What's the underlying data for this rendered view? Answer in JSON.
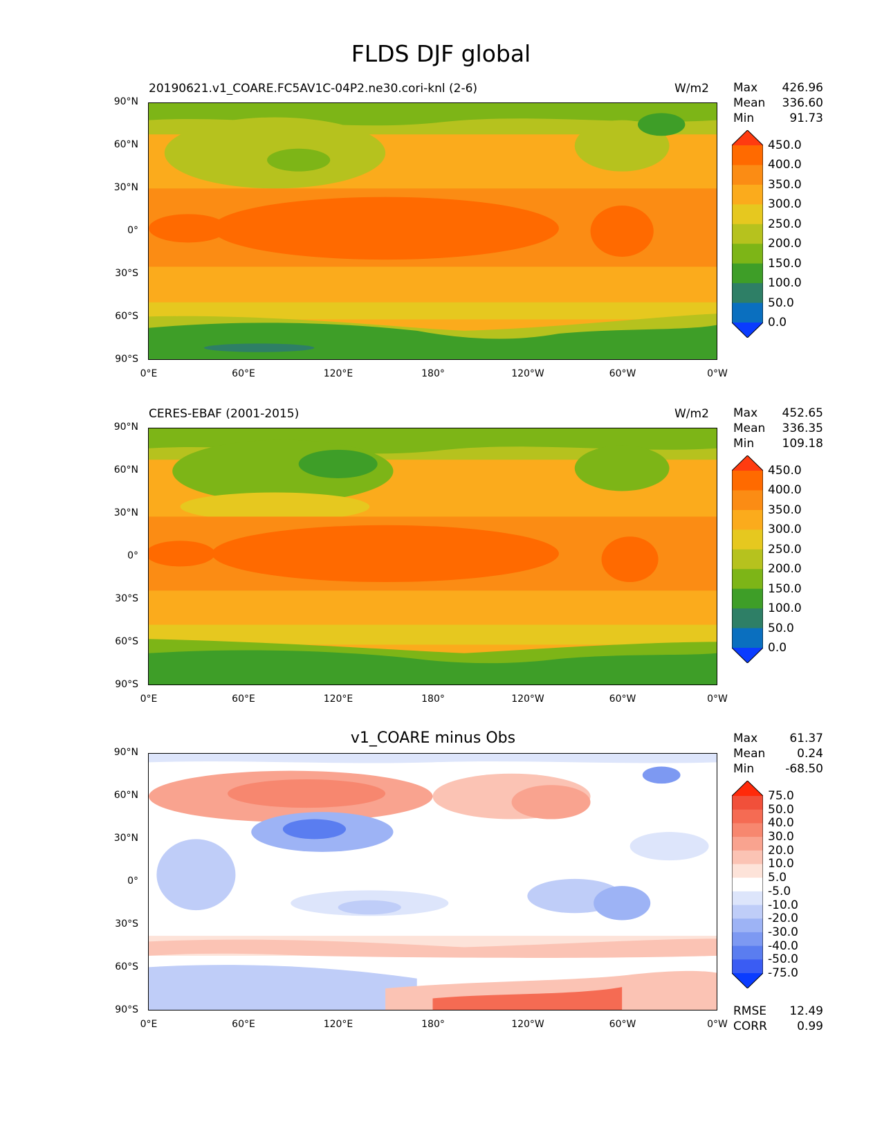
{
  "title": "FLDS DJF global",
  "y_ticks": [
    "90°N",
    "60°N",
    "30°N",
    "0°",
    "30°S",
    "60°S",
    "90°S"
  ],
  "x_ticks": [
    "0°E",
    "60°E",
    "120°E",
    "180°",
    "120°W",
    "60°W",
    "0°W"
  ],
  "panels": [
    {
      "subtitle": "20190621.v1_COARE.FC5AV1C-04P2.ne30.cori-knl (2-6)",
      "units": "W/m2",
      "stats": {
        "max_label": "Max",
        "max": "426.96",
        "mean_label": "Mean",
        "mean": "336.60",
        "min_label": "Min",
        "min": "91.73"
      },
      "colorbar": {
        "levels": [
          "450.0",
          "400.0",
          "350.0",
          "300.0",
          "250.0",
          "200.0",
          "150.0",
          "100.0",
          "50.0",
          "0.0"
        ],
        "colors": [
          "#ff3b10",
          "#ff6a00",
          "#fb8c14",
          "#fbab1c",
          "#e6c81f",
          "#b6c21e",
          "#7db517",
          "#3e9e28",
          "#2e7f66",
          "#0a6fbf",
          "#0a3cff"
        ]
      }
    },
    {
      "subtitle": "CERES-EBAF (2001-2015)",
      "units": "W/m2",
      "stats": {
        "max_label": "Max",
        "max": "452.65",
        "mean_label": "Mean",
        "mean": "336.35",
        "min_label": "Min",
        "min": "109.18"
      },
      "colorbar": {
        "levels": [
          "450.0",
          "400.0",
          "350.0",
          "300.0",
          "250.0",
          "200.0",
          "150.0",
          "100.0",
          "50.0",
          "0.0"
        ],
        "colors": [
          "#ff3b10",
          "#ff6a00",
          "#fb8c14",
          "#fbab1c",
          "#e6c81f",
          "#b6c21e",
          "#7db517",
          "#3e9e28",
          "#2e7f66",
          "#0a6fbf",
          "#0a3cff"
        ]
      }
    },
    {
      "subtitle": "v1_COARE minus Obs",
      "units": "",
      "stats": {
        "max_label": "Max",
        "max": "61.37",
        "mean_label": "Mean",
        "mean": "0.24",
        "min_label": "Min",
        "min": "-68.50"
      },
      "colorbar": {
        "levels": [
          "75.0",
          "50.0",
          "40.0",
          "30.0",
          "20.0",
          "10.0",
          "5.0",
          "-5.0",
          "-10.0",
          "-20.0",
          "-30.0",
          "-40.0",
          "-50.0",
          "-75.0"
        ],
        "colors": [
          "#ff2a0a",
          "#f1503a",
          "#f56b53",
          "#f7876f",
          "#f9a38f",
          "#fbc3b4",
          "#fde3d9",
          "#ffffff",
          "#dde5fb",
          "#bfcdf8",
          "#9db3f5",
          "#7d99f2",
          "#5a7df0",
          "#3a5cf3",
          "#0a3cff"
        ]
      },
      "rmse_label": "RMSE",
      "rmse": "12.49",
      "corr_label": "CORR",
      "corr": "0.99"
    }
  ]
}
